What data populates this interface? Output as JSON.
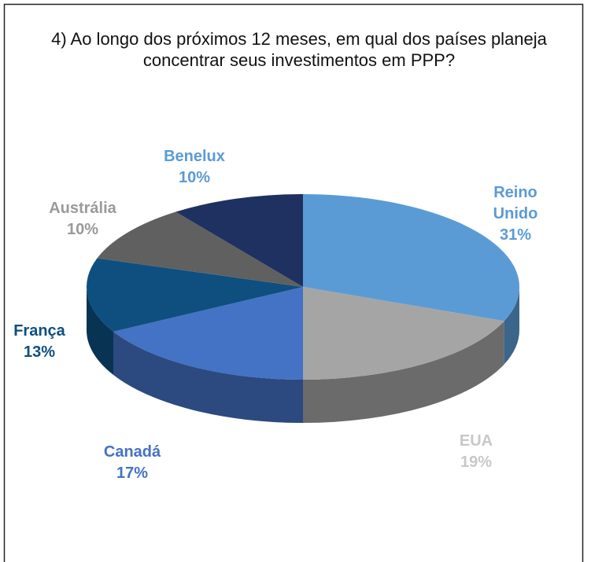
{
  "chart_data": {
    "type": "pie",
    "title": "4) Ao longo dos próximos 12 meses, em qual dos países planeja concentrar seus investimentos em PPP?",
    "categories": [
      "Reino Unido",
      "EUA",
      "Canadá",
      "França",
      "Austrália",
      "Benelux"
    ],
    "values": [
      31,
      19,
      17,
      13,
      10,
      10
    ],
    "value_labels": [
      "31%",
      "19%",
      "17%",
      "13%",
      "10%",
      "10%"
    ],
    "colors": [
      "#5b9bd5",
      "#a5a5a5",
      "#4472c4",
      "#0e4f80",
      "#606060",
      "#1f3160"
    ],
    "label_colors": [
      "#5b9bd5",
      "#c8c8c8",
      "#4472c4",
      "#0e4f80",
      "#9a9a9a",
      "#5b9bd5"
    ]
  }
}
